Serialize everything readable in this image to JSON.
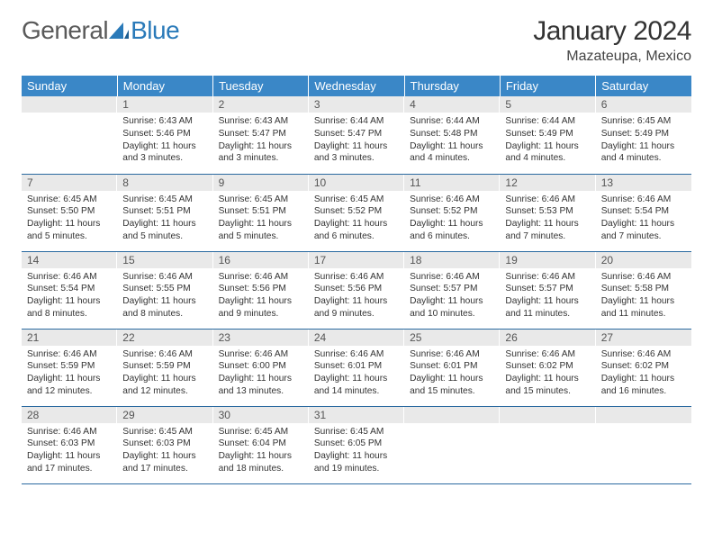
{
  "logo": {
    "text_a": "General",
    "text_b": "Blue"
  },
  "title": "January 2024",
  "location": "Mazateupa, Mexico",
  "colors": {
    "header_bg": "#3a87c7",
    "daynum_bg": "#e9e9e9",
    "row_border": "#2a6aa0",
    "logo_gray": "#5a5a5a",
    "logo_blue": "#2a7ab9"
  },
  "weekdays": [
    "Sunday",
    "Monday",
    "Tuesday",
    "Wednesday",
    "Thursday",
    "Friday",
    "Saturday"
  ],
  "start_offset": 1,
  "days": [
    {
      "n": 1,
      "sr": "6:43 AM",
      "ss": "5:46 PM",
      "dl": "11 hours and 3 minutes."
    },
    {
      "n": 2,
      "sr": "6:43 AM",
      "ss": "5:47 PM",
      "dl": "11 hours and 3 minutes."
    },
    {
      "n": 3,
      "sr": "6:44 AM",
      "ss": "5:47 PM",
      "dl": "11 hours and 3 minutes."
    },
    {
      "n": 4,
      "sr": "6:44 AM",
      "ss": "5:48 PM",
      "dl": "11 hours and 4 minutes."
    },
    {
      "n": 5,
      "sr": "6:44 AM",
      "ss": "5:49 PM",
      "dl": "11 hours and 4 minutes."
    },
    {
      "n": 6,
      "sr": "6:45 AM",
      "ss": "5:49 PM",
      "dl": "11 hours and 4 minutes."
    },
    {
      "n": 7,
      "sr": "6:45 AM",
      "ss": "5:50 PM",
      "dl": "11 hours and 5 minutes."
    },
    {
      "n": 8,
      "sr": "6:45 AM",
      "ss": "5:51 PM",
      "dl": "11 hours and 5 minutes."
    },
    {
      "n": 9,
      "sr": "6:45 AM",
      "ss": "5:51 PM",
      "dl": "11 hours and 5 minutes."
    },
    {
      "n": 10,
      "sr": "6:45 AM",
      "ss": "5:52 PM",
      "dl": "11 hours and 6 minutes."
    },
    {
      "n": 11,
      "sr": "6:46 AM",
      "ss": "5:52 PM",
      "dl": "11 hours and 6 minutes."
    },
    {
      "n": 12,
      "sr": "6:46 AM",
      "ss": "5:53 PM",
      "dl": "11 hours and 7 minutes."
    },
    {
      "n": 13,
      "sr": "6:46 AM",
      "ss": "5:54 PM",
      "dl": "11 hours and 7 minutes."
    },
    {
      "n": 14,
      "sr": "6:46 AM",
      "ss": "5:54 PM",
      "dl": "11 hours and 8 minutes."
    },
    {
      "n": 15,
      "sr": "6:46 AM",
      "ss": "5:55 PM",
      "dl": "11 hours and 8 minutes."
    },
    {
      "n": 16,
      "sr": "6:46 AM",
      "ss": "5:56 PM",
      "dl": "11 hours and 9 minutes."
    },
    {
      "n": 17,
      "sr": "6:46 AM",
      "ss": "5:56 PM",
      "dl": "11 hours and 9 minutes."
    },
    {
      "n": 18,
      "sr": "6:46 AM",
      "ss": "5:57 PM",
      "dl": "11 hours and 10 minutes."
    },
    {
      "n": 19,
      "sr": "6:46 AM",
      "ss": "5:57 PM",
      "dl": "11 hours and 11 minutes."
    },
    {
      "n": 20,
      "sr": "6:46 AM",
      "ss": "5:58 PM",
      "dl": "11 hours and 11 minutes."
    },
    {
      "n": 21,
      "sr": "6:46 AM",
      "ss": "5:59 PM",
      "dl": "11 hours and 12 minutes."
    },
    {
      "n": 22,
      "sr": "6:46 AM",
      "ss": "5:59 PM",
      "dl": "11 hours and 12 minutes."
    },
    {
      "n": 23,
      "sr": "6:46 AM",
      "ss": "6:00 PM",
      "dl": "11 hours and 13 minutes."
    },
    {
      "n": 24,
      "sr": "6:46 AM",
      "ss": "6:01 PM",
      "dl": "11 hours and 14 minutes."
    },
    {
      "n": 25,
      "sr": "6:46 AM",
      "ss": "6:01 PM",
      "dl": "11 hours and 15 minutes."
    },
    {
      "n": 26,
      "sr": "6:46 AM",
      "ss": "6:02 PM",
      "dl": "11 hours and 15 minutes."
    },
    {
      "n": 27,
      "sr": "6:46 AM",
      "ss": "6:02 PM",
      "dl": "11 hours and 16 minutes."
    },
    {
      "n": 28,
      "sr": "6:46 AM",
      "ss": "6:03 PM",
      "dl": "11 hours and 17 minutes."
    },
    {
      "n": 29,
      "sr": "6:45 AM",
      "ss": "6:03 PM",
      "dl": "11 hours and 17 minutes."
    },
    {
      "n": 30,
      "sr": "6:45 AM",
      "ss": "6:04 PM",
      "dl": "11 hours and 18 minutes."
    },
    {
      "n": 31,
      "sr": "6:45 AM",
      "ss": "6:05 PM",
      "dl": "11 hours and 19 minutes."
    }
  ],
  "labels": {
    "sunrise": "Sunrise: ",
    "sunset": "Sunset: ",
    "daylight": "Daylight: "
  }
}
